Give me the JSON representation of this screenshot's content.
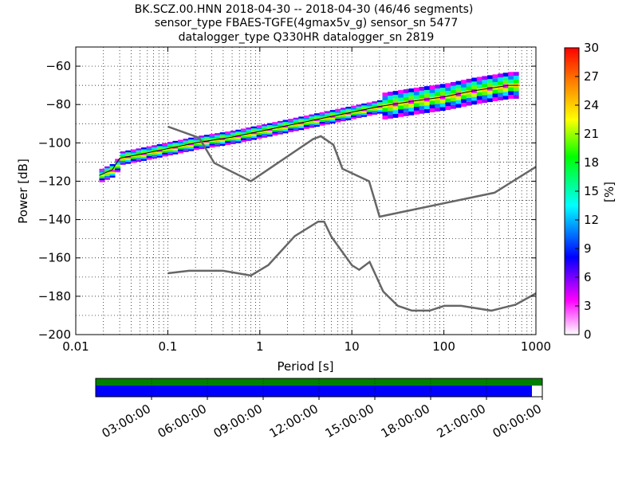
{
  "title_lines": [
    "BK.SCZ.00.HNN   2018-04-30 -- 2018-04-30  (46/46 segments)",
    "sensor_type FBAES-TGFE(4gmax5v_g) sensor_sn 5477",
    "datalogger_type Q330HR datalogger_sn 2819"
  ],
  "colors": {
    "model_lines": "#666666",
    "mode_line": "#000000",
    "coverage_top": "#008000",
    "coverage_bottom": "#0000ff"
  },
  "chart_data": [
    {
      "type": "heatmap",
      "title": "",
      "xlabel": "Period [s]",
      "ylabel": "Power [dB]",
      "x_scale": "log",
      "xlim": [
        0.01,
        1000
      ],
      "ylim": [
        -200,
        -50
      ],
      "x_ticks": [
        0.01,
        0.1,
        1,
        10,
        100,
        1000
      ],
      "x_tick_labels": [
        "0.01",
        "0.1",
        "1",
        "10",
        "100",
        "1000"
      ],
      "y_ticks": [
        -200,
        -180,
        -160,
        -140,
        -120,
        -100,
        -80,
        -60
      ],
      "y_tick_labels": [
        "−200",
        "−180",
        "−160",
        "−140",
        "−120",
        "−100",
        "−80",
        "−60"
      ],
      "grid": true,
      "colorbar": {
        "label": "[%]",
        "range": [
          0,
          30
        ],
        "ticks": [
          "0",
          "3",
          "6",
          "9",
          "12",
          "15",
          "18",
          "21",
          "24",
          "27",
          "30"
        ]
      },
      "psd_band": {
        "periods": [
          0.018,
          0.02,
          0.025,
          0.03,
          0.05,
          0.1,
          0.2,
          0.5,
          1,
          2,
          5,
          10,
          20,
          50,
          100,
          200,
          500,
          650
        ],
        "power_center": [
          -117,
          -116,
          -114,
          -108,
          -106,
          -103,
          -100,
          -97,
          -94,
          -91,
          -87,
          -84,
          -81,
          -78,
          -76,
          -73,
          -70,
          -70
        ]
      },
      "new_high_noise_model": {
        "periods": [
          0.1,
          0.22,
          0.32,
          0.8,
          3.8,
          4.6,
          6.3,
          7.9,
          15.4,
          20,
          354.8,
          1000
        ],
        "power": [
          -91.5,
          -97.4,
          -110.5,
          -120,
          -98,
          -96.5,
          -101,
          -113.5,
          -120,
          -138.5,
          -126,
          -112.5
        ]
      },
      "new_low_noise_model": {
        "periods": [
          0.1,
          0.17,
          0.4,
          0.8,
          1.24,
          2.4,
          4.3,
          5,
          6,
          10,
          12,
          15.6,
          21.9,
          31.6,
          45,
          70,
          101,
          154,
          328,
          600,
          1000
        ],
        "power": [
          -168,
          -166.7,
          -166.7,
          -169.2,
          -163.7,
          -148.6,
          -141.1,
          -141.1,
          -149,
          -163.8,
          -166.2,
          -162.1,
          -177.5,
          -185,
          -187.5,
          -187.5,
          -185,
          -185,
          -187.5,
          -184.4,
          -178.5
        ]
      }
    },
    {
      "type": "bar",
      "title": "",
      "xlabel": "",
      "ylabel": "",
      "time_range_hours": [
        0,
        24
      ],
      "tick_labels": [
        "03:00:00",
        "06:00:00",
        "09:00:00",
        "12:00:00",
        "15:00:00",
        "18:00:00",
        "21:00:00",
        "00:00:00"
      ],
      "data_availability_hours": [
        0,
        24
      ],
      "processed_coverage_hours": [
        0,
        23.7
      ]
    }
  ]
}
